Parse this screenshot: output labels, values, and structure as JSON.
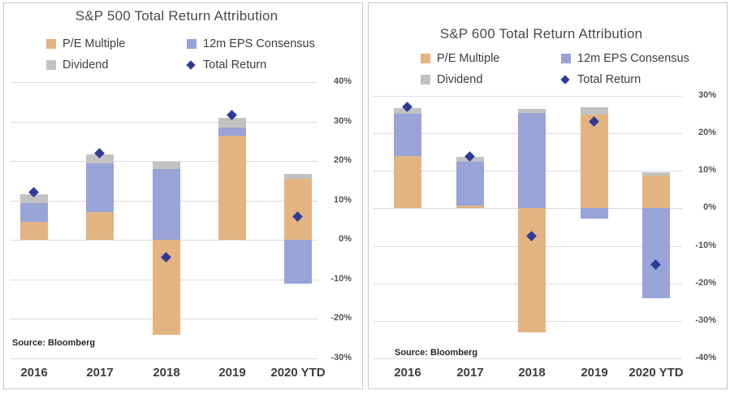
{
  "colors": {
    "pe": "#E3B482",
    "eps": "#98A4D8",
    "div": "#C2C2C2",
    "marker": "#2D3B96",
    "gridline": "#DCDCDC",
    "panel_border": "#C6C6C6",
    "title_text": "#4A4A4A",
    "axis_text": "#535353"
  },
  "chart_data": [
    {
      "type": "bar",
      "subtype": "stacked-bars-with-diamond-markers",
      "title": "S&P 500 Total Return Attribution",
      "source": "Source: Bloomberg",
      "categories": [
        "2016",
        "2017",
        "2018",
        "2019",
        "2020 YTD"
      ],
      "series": [
        {
          "name": "P/E Multiple",
          "color_key": "pe",
          "values": [
            4.5,
            7.0,
            -24.0,
            26.5,
            15.5
          ]
        },
        {
          "name": "12m EPS Consensus",
          "color_key": "eps",
          "values": [
            4.8,
            12.5,
            18.0,
            2.0,
            -11.0
          ]
        },
        {
          "name": "Dividend",
          "color_key": "div",
          "values": [
            2.3,
            2.2,
            1.8,
            2.5,
            1.3
          ]
        }
      ],
      "markers": {
        "name": "Total Return",
        "values": [
          12.0,
          21.8,
          -4.4,
          31.5,
          5.8
        ]
      },
      "ylim": [
        -30,
        40
      ],
      "ytick_step": 10,
      "yticks": [
        "40%",
        "30%",
        "20%",
        "10%",
        "0%",
        "-10%",
        "-20%",
        "-30%"
      ],
      "grid": true,
      "legend_position": "top"
    },
    {
      "type": "bar",
      "subtype": "stacked-bars-with-diamond-markers",
      "title": "S&P 600 Total Return Attribution",
      "source": "Source: Bloomberg",
      "categories": [
        "2016",
        "2017",
        "2018",
        "2019",
        "2020 YTD"
      ],
      "series": [
        {
          "name": "P/E Multiple",
          "color_key": "pe",
          "values": [
            14.0,
            0.7,
            -33.0,
            25.0,
            8.7
          ]
        },
        {
          "name": "12m EPS Consensus",
          "color_key": "eps",
          "values": [
            11.3,
            11.8,
            25.4,
            -2.7,
            -24.0
          ]
        },
        {
          "name": "Dividend",
          "color_key": "div",
          "values": [
            1.4,
            1.3,
            1.2,
            1.9,
            1.0
          ]
        }
      ],
      "markers": {
        "name": "Total Return",
        "values": [
          26.9,
          13.7,
          -7.5,
          23.0,
          -15.0
        ]
      },
      "ylim": [
        -40,
        30
      ],
      "ytick_step": 10,
      "yticks": [
        "30%",
        "20%",
        "10%",
        "0%",
        "-10%",
        "-20%",
        "-30%",
        "-40%"
      ],
      "grid": true,
      "legend_position": "top"
    }
  ]
}
